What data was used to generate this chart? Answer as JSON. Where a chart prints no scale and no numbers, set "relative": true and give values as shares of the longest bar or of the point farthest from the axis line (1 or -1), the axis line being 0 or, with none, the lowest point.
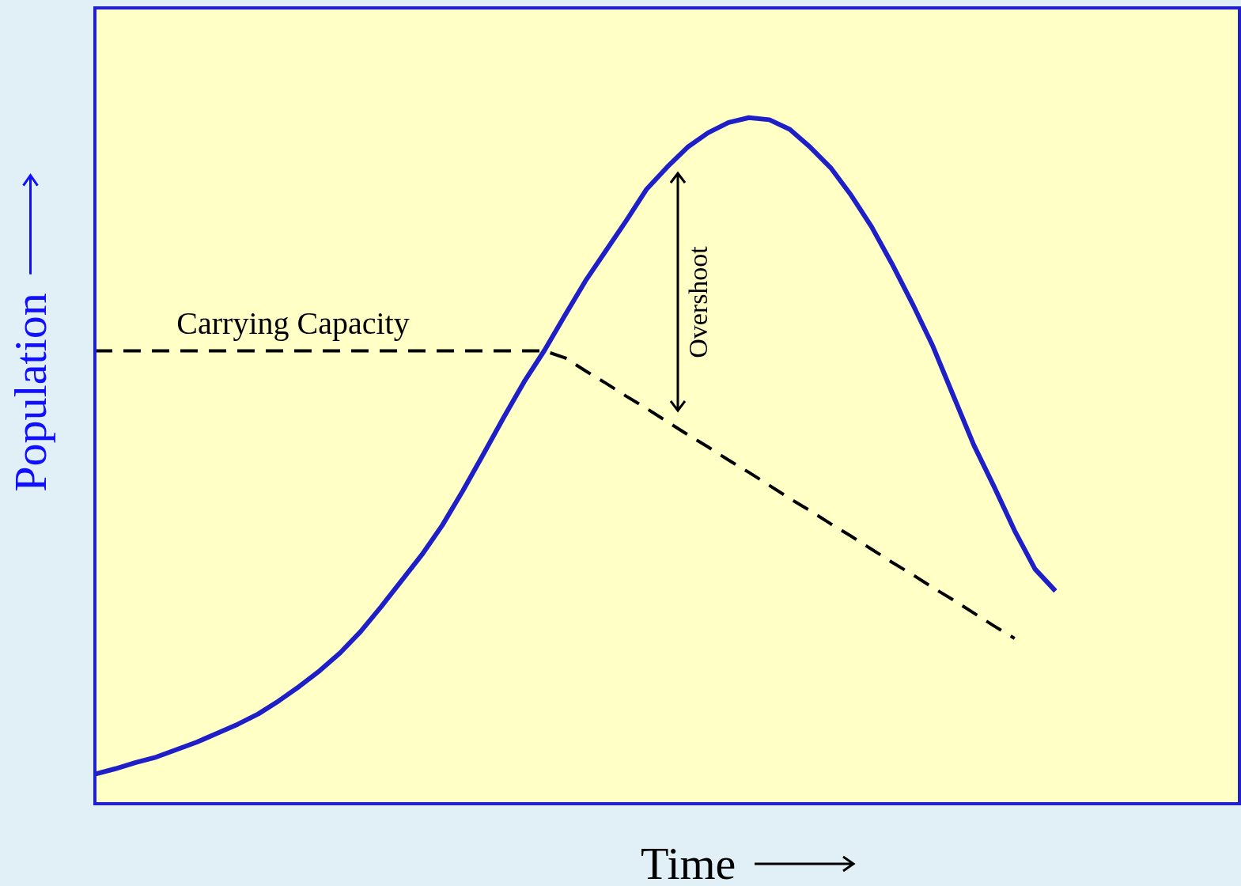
{
  "chart_data": {
    "type": "line",
    "relative": true,
    "xlabel": "Time",
    "ylabel": "Population",
    "grid": false,
    "marker": "none",
    "legend": false,
    "categories": [
      null,
      null,
      null,
      null,
      null,
      null,
      null,
      null,
      null,
      null,
      null,
      null,
      null,
      null,
      null,
      null,
      null,
      null,
      null,
      null,
      null,
      null,
      null,
      null,
      null,
      null,
      null,
      null,
      null,
      null,
      null,
      null,
      null,
      null,
      null,
      null,
      null,
      null,
      null,
      null,
      null,
      null,
      null,
      null,
      null,
      null,
      null,
      null,
      null,
      null,
      null,
      null,
      null,
      null,
      null,
      null,
      null
    ],
    "series": [
      {
        "color": "#1f1fc8",
        "line_style": "solid",
        "values": [
          0.043,
          0.051,
          0.06,
          0.068,
          0.079,
          0.09,
          0.103,
          0.116,
          0.131,
          0.15,
          0.171,
          0.194,
          0.22,
          0.251,
          0.287,
          0.325,
          0.363,
          0.406,
          0.456,
          0.509,
          0.563,
          0.615,
          0.661,
          0.712,
          0.762,
          0.806,
          0.85,
          0.896,
          0.928,
          0.957,
          0.978,
          0.993,
          1.0,
          0.997,
          0.983,
          0.957,
          0.927,
          0.887,
          0.841,
          0.787,
          0.729,
          0.667,
          0.595,
          0.523,
          0.462,
          0.398,
          0.342,
          0.31,
          null,
          null,
          null,
          null,
          null,
          null,
          null,
          null,
          null
        ]
      },
      {
        "name": "Carrying Capacity",
        "color": "#000000",
        "line_style": "dashed",
        "values": [
          0.66,
          0.66,
          0.66,
          0.66,
          0.66,
          0.66,
          0.66,
          0.66,
          0.66,
          0.66,
          0.66,
          0.66,
          0.66,
          0.66,
          0.66,
          0.66,
          0.66,
          0.66,
          0.66,
          0.66,
          0.66,
          0.66,
          0.66,
          0.65,
          0.631,
          0.613,
          0.594,
          0.576,
          0.557,
          0.538,
          0.52,
          0.501,
          0.483,
          0.464,
          0.445,
          0.427,
          0.408,
          0.39,
          0.371,
          0.352,
          0.334,
          0.315,
          0.297,
          0.278,
          0.259,
          0.241,
          null,
          null,
          null,
          null,
          null,
          null,
          null,
          null,
          null,
          null,
          null
        ]
      }
    ],
    "annotations": [
      "Overshoot"
    ]
  }
}
